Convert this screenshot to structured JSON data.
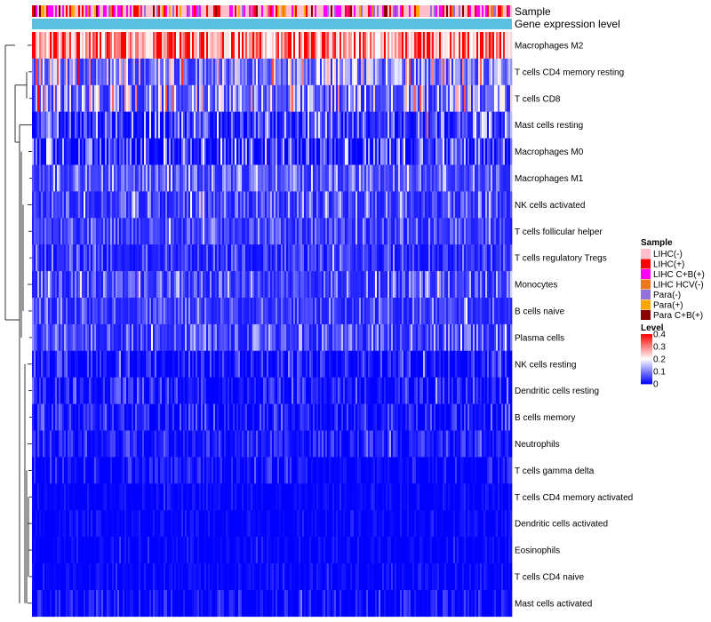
{
  "chart_data": {
    "type": "heatmap",
    "title": "",
    "annotation_tracks": [
      "Sample",
      "Gene expression level"
    ],
    "gene_expression_color": "#5bc0e0",
    "rows": [
      {
        "name": "Macrophages M2",
        "mean": 0.3,
        "spread": 0.1
      },
      {
        "name": "T cells CD4 memory resting",
        "mean": 0.12,
        "spread": 0.08
      },
      {
        "name": "T cells CD8",
        "mean": 0.11,
        "spread": 0.08
      },
      {
        "name": "Mast cells resting",
        "mean": 0.05,
        "spread": 0.05
      },
      {
        "name": "Macrophages M0",
        "mean": 0.05,
        "spread": 0.06
      },
      {
        "name": "Macrophages M1",
        "mean": 0.07,
        "spread": 0.04
      },
      {
        "name": "NK cells activated",
        "mean": 0.06,
        "spread": 0.04
      },
      {
        "name": "T cells follicular helper",
        "mean": 0.05,
        "spread": 0.03
      },
      {
        "name": "T cells regulatory  Tregs",
        "mean": 0.04,
        "spread": 0.03
      },
      {
        "name": "Monocytes",
        "mean": 0.06,
        "spread": 0.04
      },
      {
        "name": "B cells naive",
        "mean": 0.05,
        "spread": 0.03
      },
      {
        "name": "Plasma cells",
        "mean": 0.06,
        "spread": 0.04
      },
      {
        "name": "NK cells resting",
        "mean": 0.02,
        "spread": 0.03
      },
      {
        "name": "Dendritic cells resting",
        "mean": 0.02,
        "spread": 0.03
      },
      {
        "name": "B cells memory",
        "mean": 0.02,
        "spread": 0.03
      },
      {
        "name": "Neutrophils",
        "mean": 0.02,
        "spread": 0.02
      },
      {
        "name": "T cells gamma delta",
        "mean": 0.01,
        "spread": 0.02
      },
      {
        "name": "T cells CD4 memory activated",
        "mean": 0.005,
        "spread": 0.01
      },
      {
        "name": "Dendritic cells activated",
        "mean": 0.005,
        "spread": 0.01
      },
      {
        "name": "Eosinophils",
        "mean": 0.003,
        "spread": 0.01
      },
      {
        "name": "T cells CD4 naive",
        "mean": 0.005,
        "spread": 0.01
      },
      {
        "name": "Mast cells activated",
        "mean": 0.01,
        "spread": 0.02
      }
    ],
    "legend": {
      "sample_title": "Sample",
      "sample_groups": [
        {
          "label": "LIHC(-)",
          "color": "#ffc0cb"
        },
        {
          "label": "LIHC(+)",
          "color": "#ff0000"
        },
        {
          "label": "LIHC C+B(+)",
          "color": "#ff00ff"
        },
        {
          "label": "LIHC HCV(-)",
          "color": "#ee7621"
        },
        {
          "label": "Para(-)",
          "color": "#9370db"
        },
        {
          "label": "Para(+)",
          "color": "#ffa500"
        },
        {
          "label": "Para C+B(+)",
          "color": "#8b0000"
        }
      ],
      "level_title": "Level",
      "level_ticks": [
        "0.4",
        "0.3",
        "0.2",
        "0.1",
        "0"
      ],
      "level_range": [
        0,
        0.4
      ],
      "level_colors": [
        "#0000ff",
        "#ffffff",
        "#ff0000"
      ]
    }
  }
}
